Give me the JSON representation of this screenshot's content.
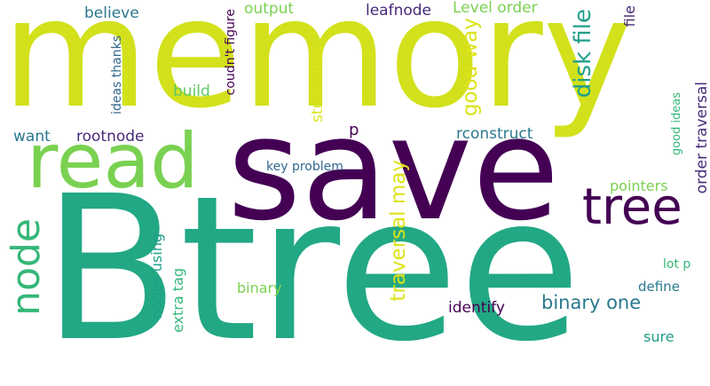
{
  "colors": {
    "lime": "#D2E11B",
    "purple": "#440154",
    "teal": "#22A884",
    "green": "#7AD151",
    "blue": "#2A788E",
    "blue2": "#31688E",
    "indigo": "#482878",
    "deep": "#472D7B",
    "yellow": "#DDE318",
    "lgreen": "#5EC962",
    "mint": "#35B779",
    "aqua": "#1F9E89",
    "slate": "#3B528B"
  },
  "words": [
    {
      "text": "memory",
      "color": "lime"
    },
    {
      "text": "save",
      "color": "purple"
    },
    {
      "text": "Btree",
      "color": "teal"
    },
    {
      "text": "read",
      "color": "green"
    },
    {
      "text": "tree",
      "color": "purple"
    },
    {
      "text": "node",
      "color": "mint"
    },
    {
      "text": "traversal may",
      "color": "yellow"
    },
    {
      "text": "disk file",
      "color": "aqua"
    },
    {
      "text": "good way",
      "color": "yellow"
    },
    {
      "text": "binary one",
      "color": "blue"
    },
    {
      "text": "order traversal",
      "color": "deep"
    },
    {
      "text": "rconstruct",
      "color": "blue"
    },
    {
      "text": "structures",
      "color": "yellow"
    },
    {
      "text": "output",
      "color": "green"
    },
    {
      "text": "leafnode",
      "color": "indigo"
    },
    {
      "text": "Level order",
      "color": "green"
    },
    {
      "text": "believe",
      "color": "blue"
    },
    {
      "text": "build",
      "color": "lgreen"
    },
    {
      "text": "want",
      "color": "blue"
    },
    {
      "text": "rootnode",
      "color": "indigo"
    },
    {
      "text": "ideas thanks",
      "color": "blue2"
    },
    {
      "text": "coudn't figure",
      "color": "purple"
    },
    {
      "text": "key problem",
      "color": "blue2"
    },
    {
      "text": "pointers",
      "color": "green"
    },
    {
      "text": "nodes using",
      "color": "aqua"
    },
    {
      "text": "extra tag",
      "color": "mint"
    },
    {
      "text": "binary",
      "color": "green"
    },
    {
      "text": "identify",
      "color": "purple"
    },
    {
      "text": "define",
      "color": "blue"
    },
    {
      "text": "sure",
      "color": "aqua"
    },
    {
      "text": "lot p",
      "color": "mint"
    },
    {
      "text": "good ideas",
      "color": "mint"
    },
    {
      "text": "file",
      "color": "indigo"
    },
    {
      "text": "p",
      "color": "purple"
    }
  ]
}
